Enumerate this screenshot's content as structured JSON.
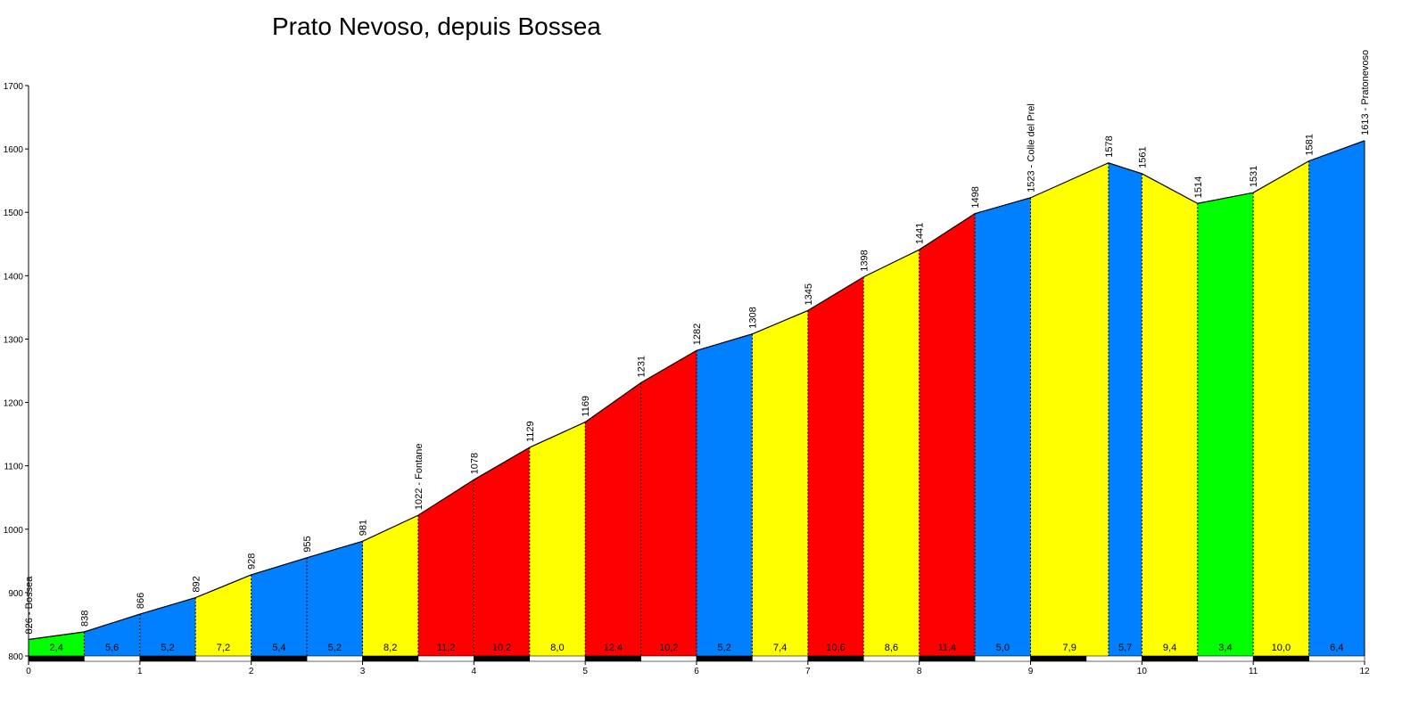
{
  "chart_data": {
    "type": "area",
    "title": "Prato Nevoso, depuis Bossea",
    "xlim": [
      0,
      12
    ],
    "ylim": [
      800,
      1700
    ],
    "x_ticks": [
      0,
      1,
      2,
      3,
      4,
      5,
      6,
      7,
      8,
      9,
      10,
      11,
      12
    ],
    "y_ticks": [
      800,
      900,
      1000,
      1100,
      1200,
      1300,
      1400,
      1500,
      1600,
      1700
    ],
    "points": [
      {
        "x": 0.0,
        "alt": 826,
        "label": "826 - Bossea"
      },
      {
        "x": 0.5,
        "alt": 838,
        "label": "838"
      },
      {
        "x": 1.0,
        "alt": 866,
        "label": "866"
      },
      {
        "x": 1.5,
        "alt": 892,
        "label": "892"
      },
      {
        "x": 2.0,
        "alt": 928,
        "label": "928"
      },
      {
        "x": 2.5,
        "alt": 955,
        "label": "955"
      },
      {
        "x": 3.0,
        "alt": 981,
        "label": "981"
      },
      {
        "x": 3.5,
        "alt": 1022,
        "label": "1022 - Fontane"
      },
      {
        "x": 4.0,
        "alt": 1078,
        "label": "1078"
      },
      {
        "x": 4.5,
        "alt": 1129,
        "label": "1129"
      },
      {
        "x": 5.0,
        "alt": 1169,
        "label": "1169"
      },
      {
        "x": 5.5,
        "alt": 1231,
        "label": "1231"
      },
      {
        "x": 6.0,
        "alt": 1282,
        "label": "1282"
      },
      {
        "x": 6.5,
        "alt": 1308,
        "label": "1308"
      },
      {
        "x": 7.0,
        "alt": 1345,
        "label": "1345"
      },
      {
        "x": 7.5,
        "alt": 1398,
        "label": "1398"
      },
      {
        "x": 8.0,
        "alt": 1441,
        "label": "1441"
      },
      {
        "x": 8.5,
        "alt": 1498,
        "label": "1498"
      },
      {
        "x": 9.0,
        "alt": 1523,
        "label": "1523 - Colle del Prel"
      },
      {
        "x": 9.7,
        "alt": 1578,
        "label": "1578"
      },
      {
        "x": 10.0,
        "alt": 1561,
        "label": "1561"
      },
      {
        "x": 10.5,
        "alt": 1514,
        "label": "1514"
      },
      {
        "x": 11.0,
        "alt": 1531,
        "label": "1531"
      },
      {
        "x": 11.5,
        "alt": 1581,
        "label": "1581"
      },
      {
        "x": 12.0,
        "alt": 1613,
        "label": "1613 - Pratonevoso"
      }
    ],
    "segments": [
      {
        "grade": "2,4",
        "color": "#00ff00"
      },
      {
        "grade": "5,6",
        "color": "#0080ff"
      },
      {
        "grade": "5,2",
        "color": "#0080ff"
      },
      {
        "grade": "7,2",
        "color": "#ffff00"
      },
      {
        "grade": "5,4",
        "color": "#0080ff"
      },
      {
        "grade": "5,2",
        "color": "#0080ff"
      },
      {
        "grade": "8,2",
        "color": "#ffff00"
      },
      {
        "grade": "11,2",
        "color": "#ff0000"
      },
      {
        "grade": "10,2",
        "color": "#ff0000"
      },
      {
        "grade": "8,0",
        "color": "#ffff00"
      },
      {
        "grade": "12,4",
        "color": "#ff0000"
      },
      {
        "grade": "10,2",
        "color": "#ff0000"
      },
      {
        "grade": "5,2",
        "color": "#0080ff"
      },
      {
        "grade": "7,4",
        "color": "#ffff00"
      },
      {
        "grade": "10,6",
        "color": "#ff0000"
      },
      {
        "grade": "8,6",
        "color": "#ffff00"
      },
      {
        "grade": "11,4",
        "color": "#ff0000"
      },
      {
        "grade": "5,0",
        "color": "#0080ff"
      },
      {
        "grade": "7,9",
        "color": "#ffff00"
      },
      {
        "grade": "5,7",
        "color": "#0080ff"
      },
      {
        "grade": "9,4",
        "color": "#ffff00"
      },
      {
        "grade": "3,4",
        "color": "#00ff00"
      },
      {
        "grade": "10,0",
        "color": "#ffff00"
      },
      {
        "grade": "6,4",
        "color": "#0080ff"
      }
    ]
  }
}
